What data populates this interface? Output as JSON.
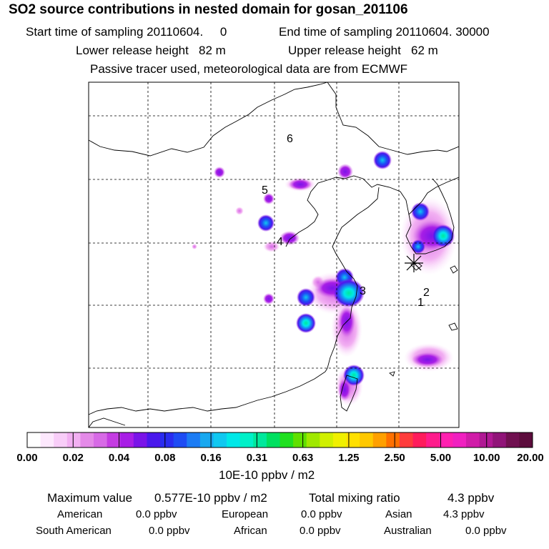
{
  "header": {
    "title": "SO2 source contributions in nested domain for gosan_201106",
    "start_time": "Start time of sampling 20110604.     0",
    "end_time": "End time of sampling 20110604. 30000",
    "lower_height": "Lower release height   82 m",
    "upper_height": "Upper release height   62 m",
    "tracer_note": "Passive tracer used, meteorological data are from ECMWF"
  },
  "map": {
    "region_labels": [
      "1",
      "2",
      "3",
      "4",
      "5",
      "6"
    ],
    "receptor_marker": "receptor-asterisk"
  },
  "colorbar": {
    "tick_labels": [
      "0.00",
      "0.02",
      "0.04",
      "0.08",
      "0.16",
      "0.31",
      "0.63",
      "1.25",
      "2.50",
      "5.00",
      "10.00",
      "20.00"
    ],
    "units": "10E-10 ppbv / m2",
    "colors": [
      "#ffffff",
      "#fde8fd",
      "#f8cdf8",
      "#f2b0f2",
      "#e48ae8",
      "#d76ae6",
      "#c43ce2",
      "#a81ee6",
      "#7a14e8",
      "#4a18ec",
      "#2a2cf0",
      "#1e4cf4",
      "#1c7cf4",
      "#18a8f0",
      "#10c8f0",
      "#00e8e8",
      "#00f0c8",
      "#00e89c",
      "#00e060",
      "#20e020",
      "#60e000",
      "#a0e800",
      "#d0f000",
      "#f0f000",
      "#ffe000",
      "#ffc800",
      "#ffa000",
      "#ff7000",
      "#ff3c3c",
      "#ff1c5c",
      "#ff1c8c",
      "#ff20b0",
      "#f020c0",
      "#d01ca8",
      "#b01894",
      "#901478",
      "#701050",
      "#5c0c3c"
    ]
  },
  "summary": {
    "max_label": "Maximum value",
    "max_value": "0.577E-10 ppbv / m2",
    "total_label": "Total mixing ratio",
    "total_value": "4.3 ppbv"
  },
  "regions": {
    "american_label": "American",
    "american_value": "0.0 ppbv",
    "european_label": "European",
    "european_value": "0.0 ppbv",
    "asian_label": "Asian",
    "asian_value": "4.3 ppbv",
    "south_american_label": "South American",
    "south_american_value": "0.0 ppbv",
    "african_label": "African",
    "african_value": "0.0 ppbv",
    "australian_label": "Australian",
    "australian_value": "0.0 ppbv"
  }
}
